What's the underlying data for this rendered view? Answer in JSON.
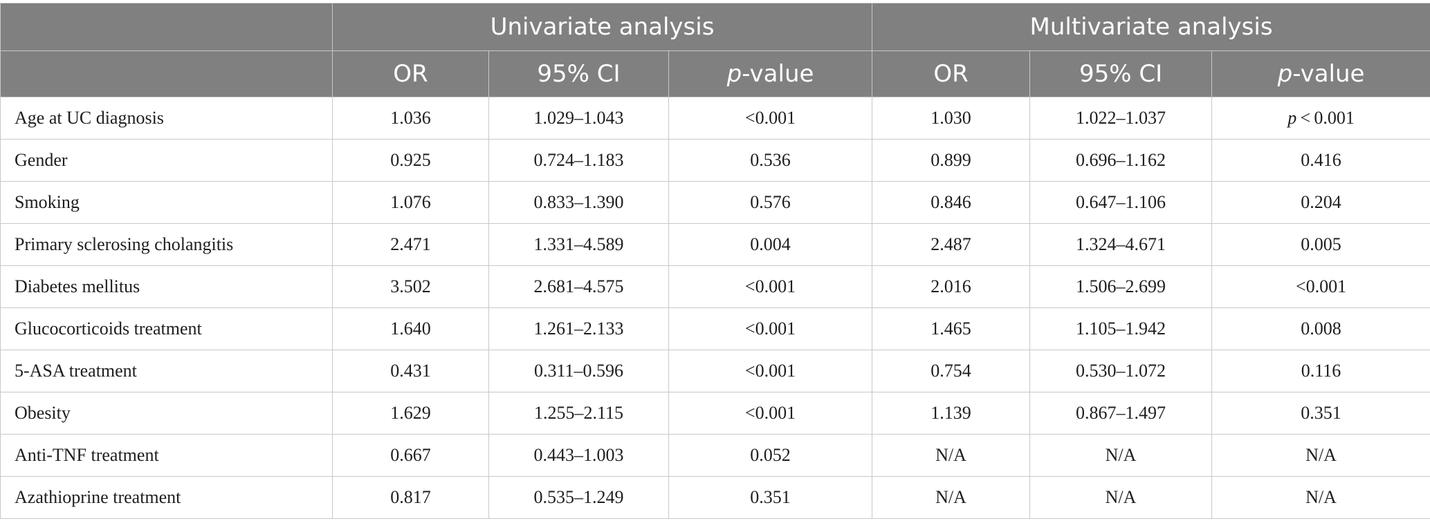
{
  "groups": {
    "univariate": "Univariate analysis",
    "multivariate": "Multivariate analysis"
  },
  "subheaders": {
    "or": "OR",
    "ci": "95% CI",
    "p_italic": "p",
    "p_suffix": "-value"
  },
  "rows": [
    {
      "label": "Age at UC diagnosis",
      "u_or": "1.036",
      "u_ci": "1.029–1.043",
      "u_p": "<0.001",
      "m_or": "1.030",
      "m_ci": "1.022–1.037",
      "m_p_prefix": "p",
      "m_p": " < 0.001"
    },
    {
      "label": "Gender",
      "u_or": "0.925",
      "u_ci": "0.724–1.183",
      "u_p": "0.536",
      "m_or": "0.899",
      "m_ci": "0.696–1.162",
      "m_p": "0.416"
    },
    {
      "label": "Smoking",
      "u_or": "1.076",
      "u_ci": "0.833–1.390",
      "u_p": "0.576",
      "m_or": "0.846",
      "m_ci": "0.647–1.106",
      "m_p": "0.204"
    },
    {
      "label": "Primary sclerosing cholangitis",
      "u_or": "2.471",
      "u_ci": "1.331–4.589",
      "u_p": "0.004",
      "m_or": "2.487",
      "m_ci": "1.324–4.671",
      "m_p": "0.005"
    },
    {
      "label": "Diabetes mellitus",
      "u_or": "3.502",
      "u_ci": "2.681–4.575",
      "u_p": "<0.001",
      "m_or": "2.016",
      "m_ci": "1.506–2.699",
      "m_p": "<0.001"
    },
    {
      "label": "Glucocorticoids treatment",
      "u_or": "1.640",
      "u_ci": "1.261–2.133",
      "u_p": "<0.001",
      "m_or": "1.465",
      "m_ci": "1.105–1.942",
      "m_p": "0.008"
    },
    {
      "label": "5-ASA treatment",
      "u_or": "0.431",
      "u_ci": "0.311–0.596",
      "u_p": "<0.001",
      "m_or": "0.754",
      "m_ci": "0.530–1.072",
      "m_p": "0.116"
    },
    {
      "label": "Obesity",
      "u_or": "1.629",
      "u_ci": "1.255–2.115",
      "u_p": "<0.001",
      "m_or": "1.139",
      "m_ci": "0.867–1.497",
      "m_p": "0.351"
    },
    {
      "label": "Anti-TNF treatment",
      "u_or": "0.667",
      "u_ci": "0.443–1.003",
      "u_p": "0.052",
      "m_or": "N/A",
      "m_ci": "N/A",
      "m_p": "N/A"
    },
    {
      "label": "Azathioprine treatment",
      "u_or": "0.817",
      "u_ci": "0.535–1.249",
      "u_p": "0.351",
      "m_or": "N/A",
      "m_ci": "N/A",
      "m_p": "N/A"
    }
  ]
}
